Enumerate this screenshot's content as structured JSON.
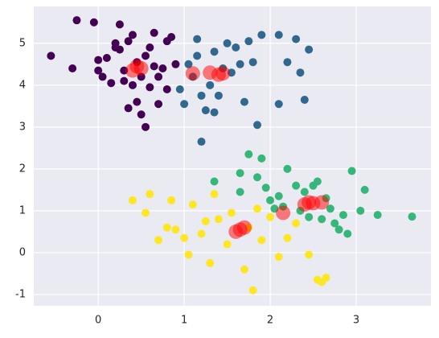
{
  "chart_data": {
    "type": "scatter",
    "xlim": [
      -0.75,
      3.87
    ],
    "ylim": [
      -1.27,
      5.88
    ],
    "xticks": [
      0,
      1,
      2,
      3
    ],
    "yticks": [
      -1,
      0,
      1,
      2,
      3,
      4,
      5
    ],
    "grid": true,
    "series": [
      {
        "color": "#440154",
        "x": [
          -0.55,
          -0.25,
          -0.05,
          0.0,
          0.05,
          0.1,
          0.15,
          0.2,
          0.25,
          0.3,
          0.35,
          0.4,
          0.45,
          0.5,
          0.55,
          0.6,
          0.65,
          0.7,
          0.75,
          0.8,
          0.85,
          0.9,
          0.25,
          0.35,
          0.5,
          0.6,
          0.7,
          0.4,
          0.55,
          0.3,
          0.65,
          0.2,
          0.8,
          0.45,
          0.0,
          -0.3
        ],
        "values": [
          4.7,
          5.55,
          5.5,
          4.6,
          4.2,
          4.65,
          4.05,
          4.9,
          5.45,
          4.35,
          3.45,
          4.0,
          3.6,
          3.3,
          3.0,
          4.9,
          5.25,
          4.2,
          4.4,
          5.05,
          5.15,
          4.5,
          4.85,
          5.05,
          4.2,
          3.95,
          3.55,
          5.2,
          4.7,
          4.1,
          4.45,
          5.0,
          3.9,
          4.55,
          4.35,
          4.4
        ]
      },
      {
        "color": "#31688e",
        "x": [
          0.95,
          1.05,
          1.1,
          1.15,
          1.2,
          1.25,
          1.3,
          1.35,
          1.4,
          1.45,
          1.5,
          1.55,
          1.6,
          1.7,
          1.75,
          1.85,
          1.9,
          2.1,
          2.2,
          2.3,
          2.35,
          2.4,
          2.45,
          2.1,
          1.0,
          1.2,
          1.35,
          1.65,
          1.8,
          1.15
        ],
        "values": [
          3.9,
          4.5,
          4.2,
          5.1,
          2.65,
          3.4,
          4.0,
          4.8,
          3.75,
          4.4,
          5.0,
          4.3,
          4.9,
          3.6,
          5.05,
          3.05,
          5.2,
          3.55,
          4.55,
          5.1,
          4.3,
          3.65,
          4.85,
          5.2,
          3.55,
          3.75,
          3.35,
          4.5,
          4.55,
          4.7
        ]
      },
      {
        "color": "#35b779",
        "x": [
          1.35,
          1.65,
          1.65,
          1.75,
          1.85,
          1.9,
          1.95,
          2.0,
          2.05,
          2.1,
          2.2,
          2.3,
          2.35,
          2.45,
          2.5,
          2.55,
          2.6,
          2.65,
          2.7,
          2.8,
          2.9,
          2.95,
          3.05,
          3.1,
          3.25,
          3.65,
          2.75,
          2.85,
          2.4,
          2.15
        ],
        "values": [
          1.7,
          1.9,
          1.45,
          2.35,
          1.8,
          2.25,
          1.55,
          1.25,
          1.05,
          1.35,
          2.0,
          1.6,
          1.0,
          0.85,
          1.6,
          1.7,
          0.8,
          1.3,
          1.05,
          0.55,
          0.45,
          1.95,
          1.0,
          1.5,
          0.9,
          0.86,
          0.7,
          0.9,
          1.45,
          1.1
        ]
      },
      {
        "color": "#fde725",
        "x": [
          0.4,
          0.55,
          0.6,
          0.7,
          0.8,
          0.85,
          0.9,
          1.0,
          1.05,
          1.1,
          1.2,
          1.3,
          1.35,
          1.4,
          1.5,
          1.55,
          1.7,
          1.75,
          1.8,
          1.85,
          1.9,
          2.0,
          2.1,
          2.2,
          2.3,
          2.45,
          2.55,
          2.6,
          2.65,
          1.25
        ],
        "values": [
          1.25,
          0.95,
          1.4,
          0.3,
          0.6,
          1.25,
          0.55,
          0.35,
          -0.05,
          1.15,
          0.45,
          -0.25,
          1.4,
          0.8,
          0.2,
          0.95,
          -0.4,
          0.6,
          -0.9,
          1.05,
          0.3,
          0.85,
          -0.1,
          0.35,
          0.7,
          -0.05,
          -0.65,
          -0.7,
          -0.6,
          0.75
        ]
      },
      {
        "color": "#ff0000",
        "opacity": 0.5,
        "x": [
          0.4,
          0.45,
          0.5,
          1.1,
          1.3,
          1.4,
          1.45,
          2.15,
          2.4,
          2.45,
          2.5,
          2.6,
          1.6,
          1.65,
          1.7
        ],
        "values": [
          4.35,
          4.45,
          4.4,
          4.28,
          4.3,
          4.25,
          4.28,
          0.95,
          1.15,
          1.2,
          1.18,
          1.2,
          0.5,
          0.55,
          0.6
        ]
      }
    ]
  }
}
